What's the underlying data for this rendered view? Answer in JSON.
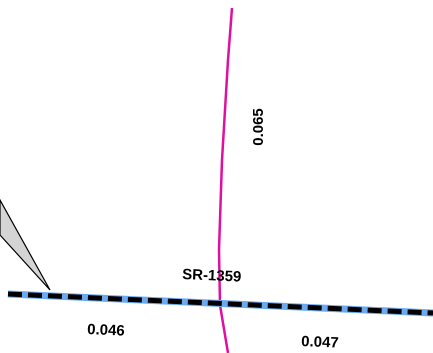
{
  "map": {
    "colors": {
      "background": "#ffffff",
      "magenta_route": "#e0109e",
      "highlight_route": "#6aaaf0",
      "dash_pattern": "#000000",
      "callout_fill": "#d4d4d4",
      "callout_stroke": "#000000",
      "label_text": "#000000"
    },
    "labels": {
      "vertical_route_value": "0.065",
      "route_name": "SR-1359",
      "left_segment_value": "0.046",
      "right_segment_value": "0.047"
    }
  }
}
